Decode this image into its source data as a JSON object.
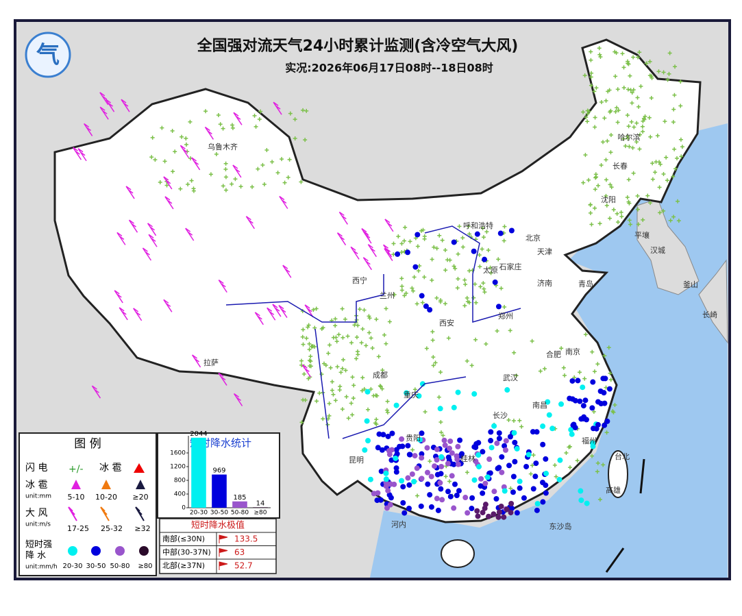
{
  "header": {
    "title": "全国强对流天气24小时累计监测(含冷空气大风)",
    "subtitle": "实况:2026年06月17日08时--18日08时"
  },
  "places": [
    "乌鲁木齐",
    "哈尔滨",
    "长春",
    "沈阳",
    "呼和浩特",
    "北京",
    "天津",
    "石家庄",
    "太原",
    "济南",
    "青岛",
    "郑州",
    "西安",
    "西宁",
    "兰州",
    "拉萨",
    "成都",
    "重庆",
    "武汉",
    "合肥",
    "南京",
    "南昌",
    "长沙",
    "福州",
    "贵阳",
    "昆明",
    "桂林",
    "台北",
    "高雄",
    "河内",
    "东沙岛",
    "平壤",
    "汉城",
    "釜山",
    "长崎"
  ],
  "legend": {
    "title": "图 例",
    "lightning": "闪 电",
    "hail": "冰 雹",
    "hail_grade": {
      "name": "冰 雹",
      "unit": "unit:mm",
      "levels": [
        "5-10",
        "10-20",
        "≥20"
      ]
    },
    "wind": {
      "name": "大 风",
      "unit": "unit:m/s",
      "levels": [
        "17-25",
        "25-32",
        "≥32"
      ]
    },
    "rain": {
      "name_lines": [
        "短时强",
        "降 水"
      ],
      "unit": "unit:mm/h",
      "levels": [
        "20-30",
        "30-50",
        "50-80",
        "≥80"
      ]
    }
  },
  "chart_data": {
    "type": "bar",
    "title": "短时降水统计",
    "categories": [
      "20-30",
      "30-50",
      "50-80",
      "≥80"
    ],
    "values": [
      2044,
      969,
      185,
      14
    ],
    "colors": [
      "#00f0f0",
      "#0000dd",
      "#9955cc",
      "#2a0a2a"
    ],
    "ylim": [
      0,
      2100
    ],
    "yticks": [
      0,
      400,
      800,
      1200,
      1600
    ]
  },
  "extremes": {
    "title": "短时降水极值",
    "rows": [
      [
        "南部(≤30N)",
        133.5
      ],
      [
        "中部(30-37N)",
        63
      ],
      [
        "北部(≥37N)",
        52.7
      ]
    ]
  }
}
